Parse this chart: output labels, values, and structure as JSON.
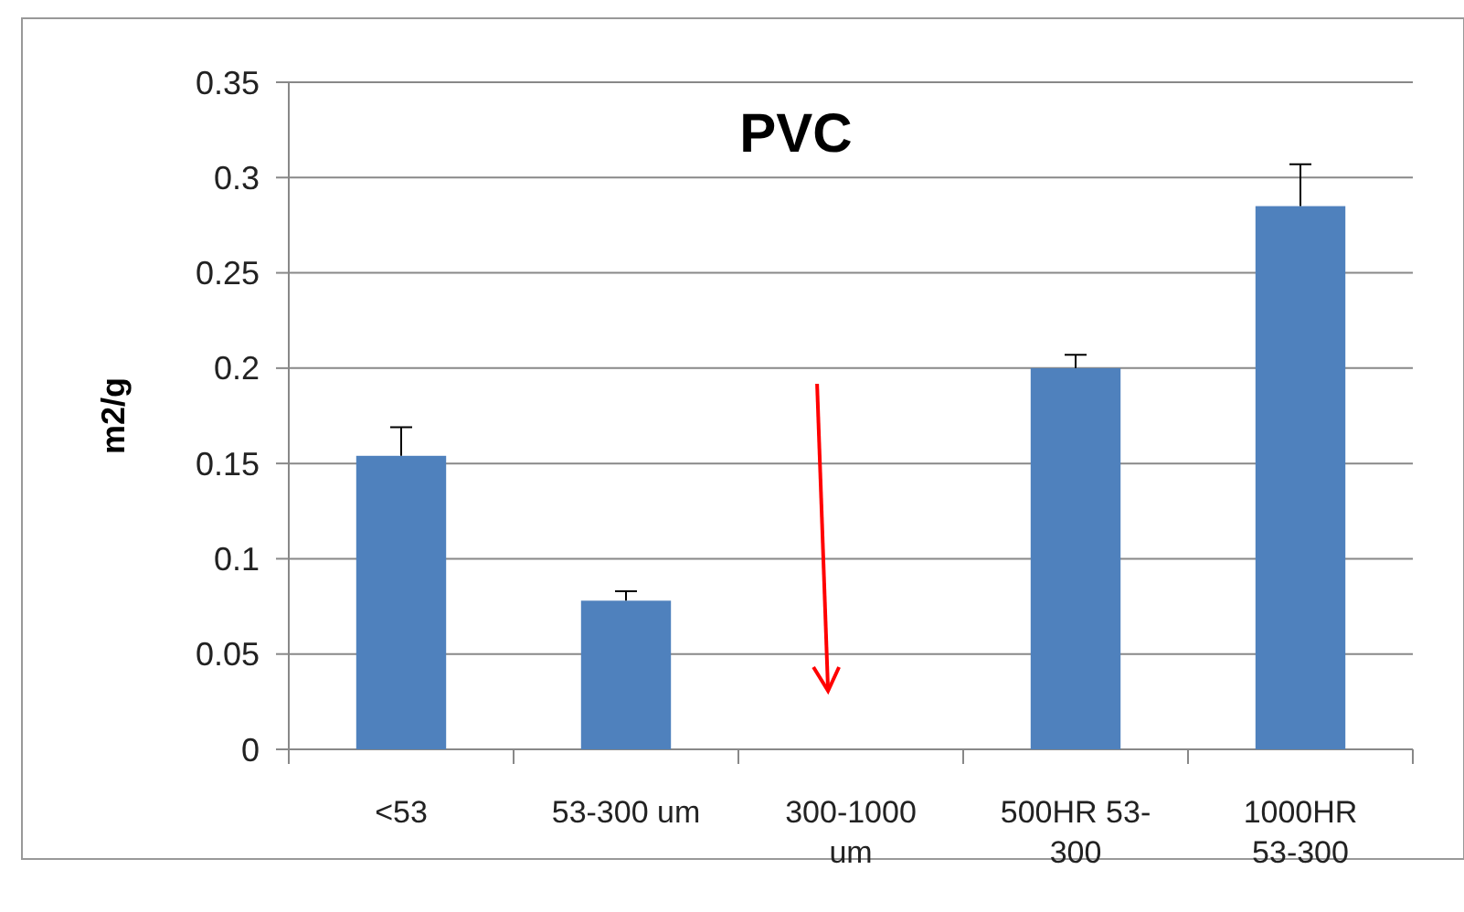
{
  "chart_data": {
    "type": "bar",
    "title": "PVC",
    "ylabel": "m2/g",
    "categories": [
      "<53",
      "53-300 um",
      "300-1000 um",
      "500HR 53-300",
      "1000HR 53-300"
    ],
    "values": [
      0.154,
      0.078,
      null,
      0.2,
      0.285
    ],
    "errors": [
      [
        0.154,
        0.169
      ],
      [
        0.078,
        0.083
      ],
      null,
      [
        0.2,
        0.207
      ],
      [
        0.285,
        0.307
      ]
    ],
    "color": "#4f81bd",
    "ylim": [
      0,
      0.35
    ],
    "yticks": [
      0,
      0.05,
      0.1,
      0.15,
      0.2,
      0.25,
      0.3,
      0.35
    ],
    "grid": "y"
  }
}
